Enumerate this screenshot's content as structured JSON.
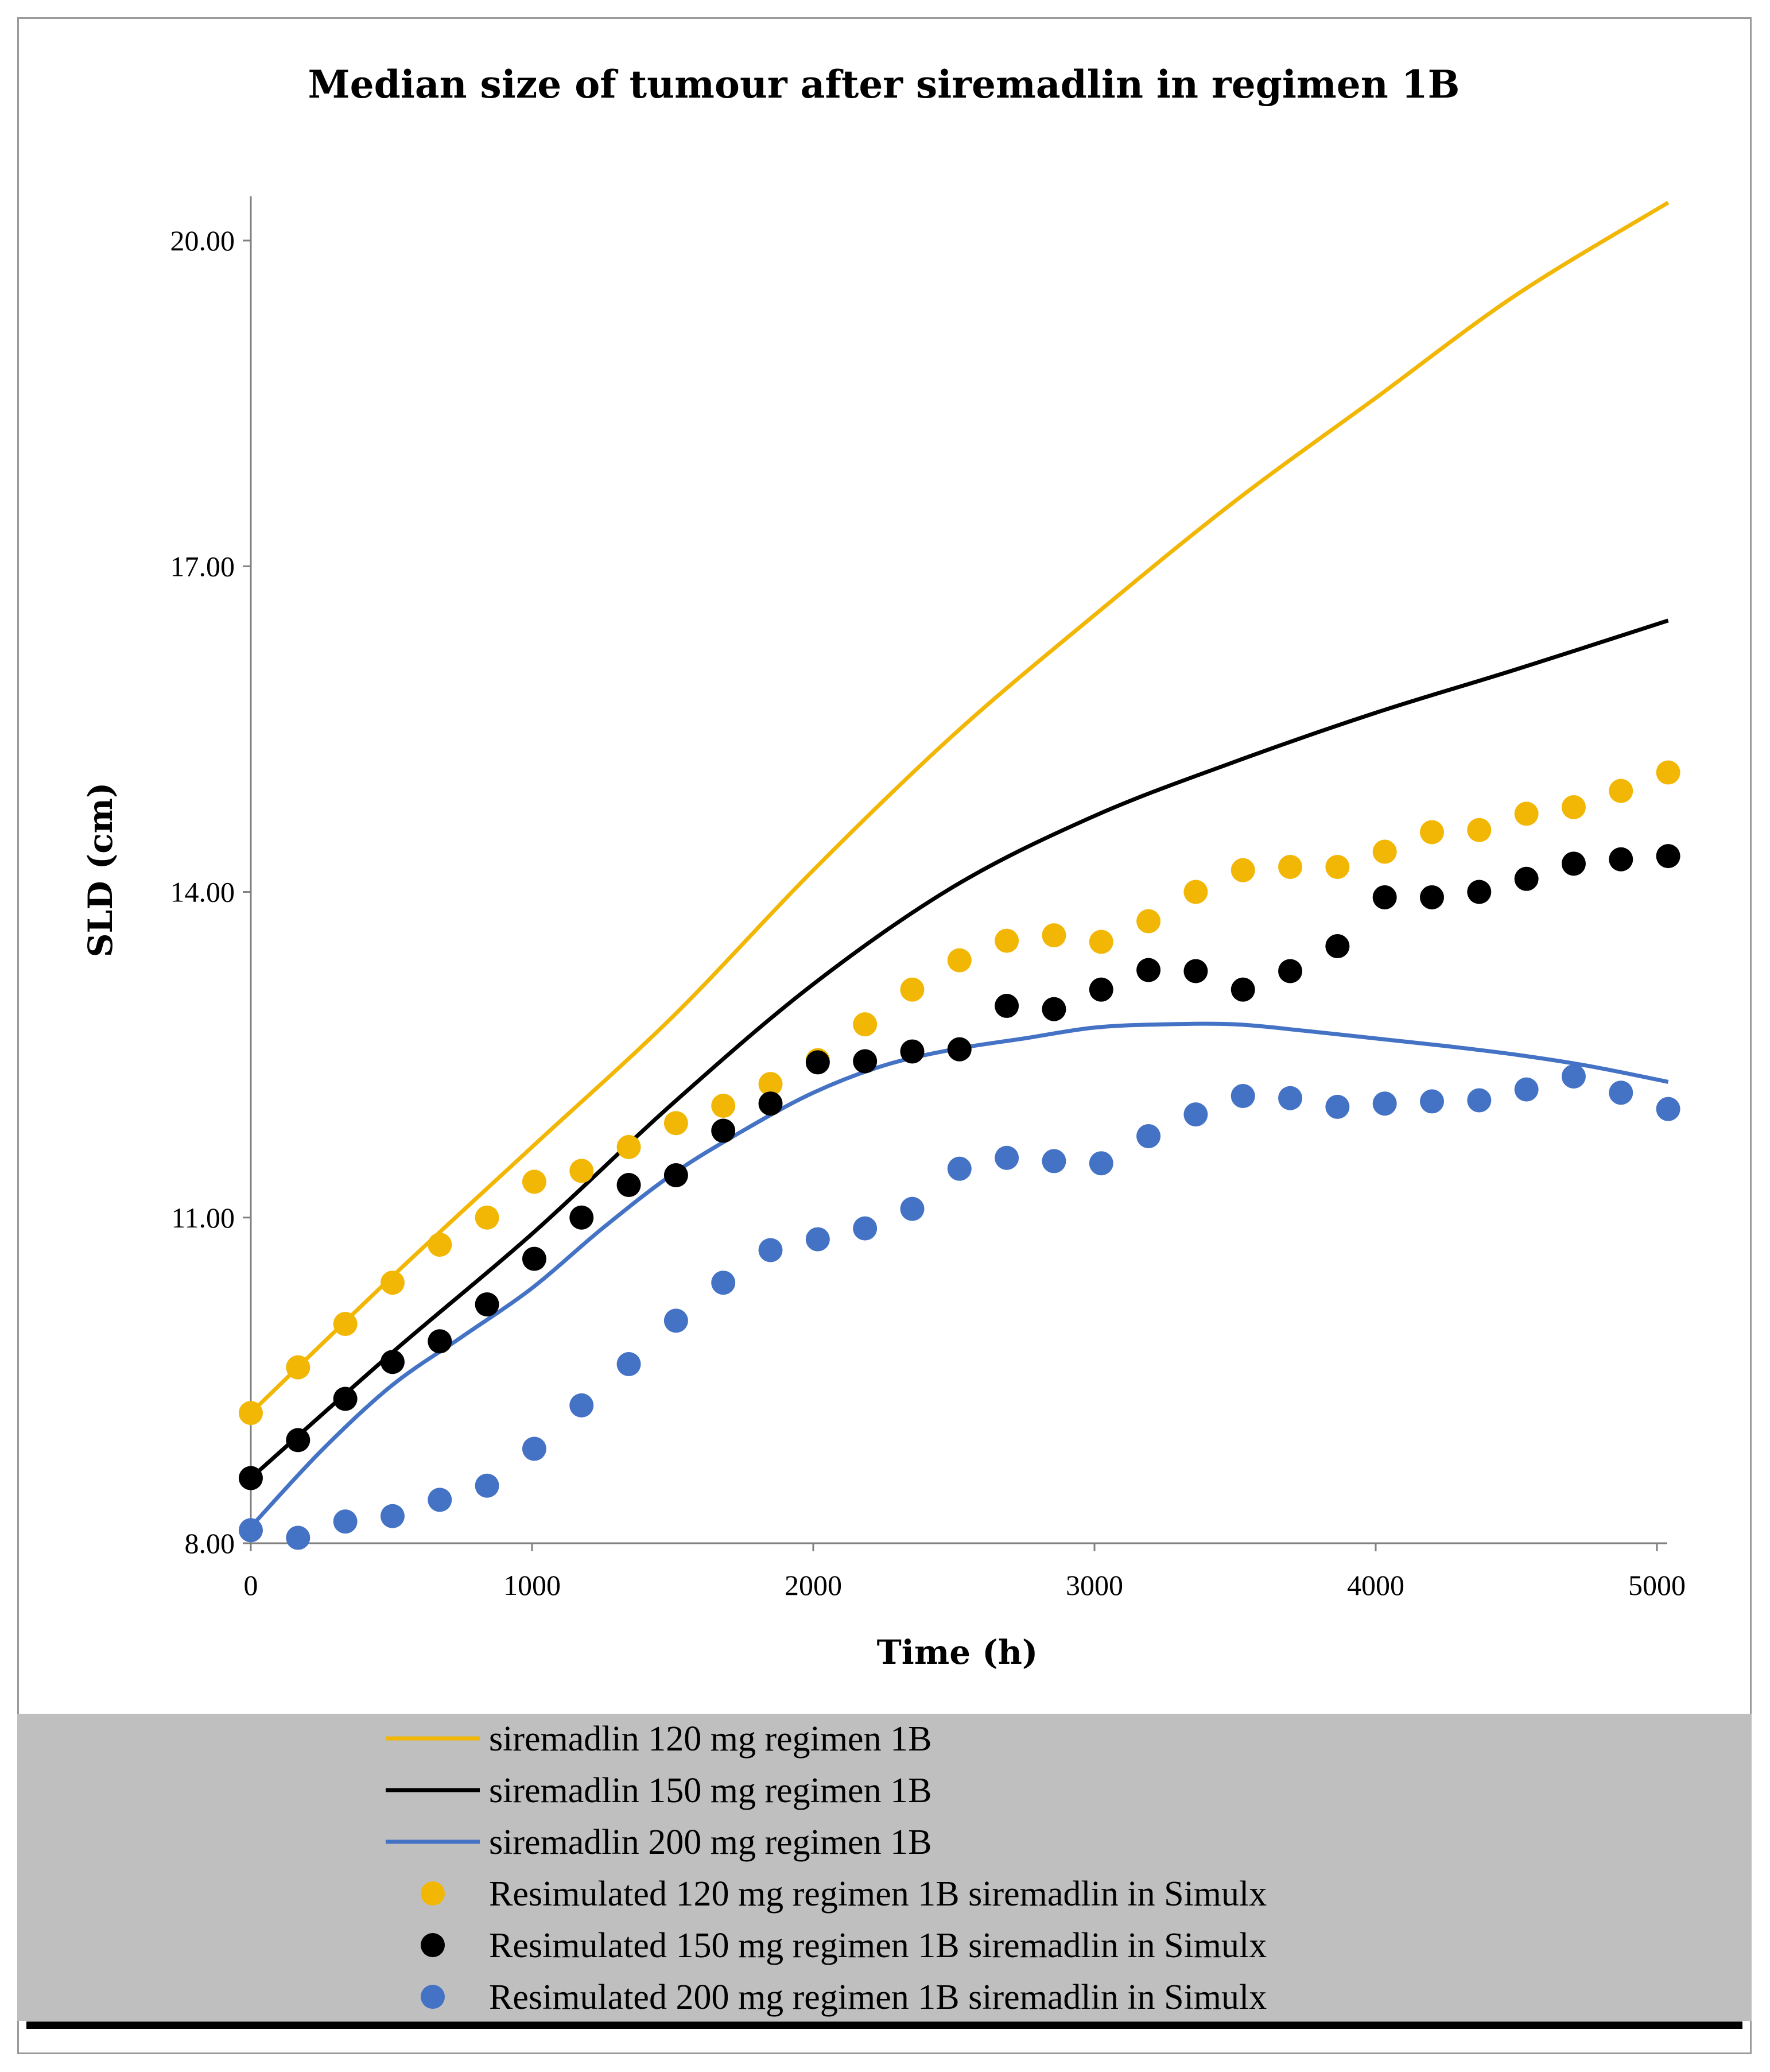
{
  "chart_data": {
    "type": "line",
    "title": "Median size of tumour after siremadlin in regimen 1B",
    "xlabel": "Time (h)",
    "ylabel": "SLD (cm)",
    "xlim": [
      0,
      5050
    ],
    "ylim": [
      8,
      20.4
    ],
    "x_ticks": [
      0,
      1000,
      2000,
      3000,
      4000,
      5000
    ],
    "x_tick_labels": [
      "0",
      "1000",
      "2000",
      "3000",
      "4000",
      "5000"
    ],
    "y_ticks": [
      8,
      11,
      14,
      17,
      20
    ],
    "y_tick_labels": [
      "8.00",
      "11.00",
      "14.00",
      "17.00",
      "20.00"
    ],
    "grid": false,
    "legend_position": "bottom",
    "legend_background": "#bfbfbf",
    "series": [
      {
        "name": "siremadlin 120 mg regimen 1B",
        "kind": "line",
        "color": "#f2b705",
        "x": [
          0,
          500,
          1000,
          1500,
          2000,
          2500,
          3000,
          3500,
          4000,
          4500,
          5040
        ],
        "y": [
          9.2,
          10.45,
          11.65,
          12.85,
          14.2,
          15.45,
          16.55,
          17.6,
          18.55,
          19.5,
          20.35
        ]
      },
      {
        "name": "siremadlin 150 mg regimen 1B",
        "kind": "line",
        "color": "#000000",
        "x": [
          0,
          500,
          1000,
          1500,
          2000,
          2500,
          3000,
          3500,
          4000,
          4500,
          5040
        ],
        "y": [
          8.6,
          9.75,
          10.85,
          12.05,
          13.15,
          14.05,
          14.7,
          15.2,
          15.65,
          16.05,
          16.5
        ]
      },
      {
        "name": "siremadlin 200 mg regimen 1B",
        "kind": "line",
        "color": "#4472c4",
        "x": [
          0,
          250,
          500,
          750,
          1000,
          1250,
          1500,
          1750,
          2000,
          2250,
          2500,
          2750,
          3000,
          3250,
          3500,
          3750,
          4000,
          4250,
          4500,
          4750,
          5040
        ],
        "y": [
          8.15,
          8.85,
          9.45,
          9.9,
          10.35,
          10.9,
          11.4,
          11.8,
          12.15,
          12.4,
          12.55,
          12.65,
          12.75,
          12.78,
          12.78,
          12.72,
          12.65,
          12.58,
          12.5,
          12.4,
          12.25
        ]
      },
      {
        "name": "Resimulated 120 mg regimen 1B siremadlin in Simulx",
        "kind": "scatter",
        "color": "#f2b705",
        "x": [
          0,
          168,
          336,
          504,
          672,
          840,
          1008,
          1176,
          1344,
          1512,
          1680,
          1848,
          2016,
          2184,
          2352,
          2520,
          2688,
          2856,
          3024,
          3192,
          3360,
          3528,
          3696,
          3864,
          4032,
          4200,
          4368,
          4536,
          4704,
          4872,
          5040
        ],
        "y": [
          9.2,
          9.62,
          10.02,
          10.4,
          10.75,
          11.0,
          11.33,
          11.43,
          11.65,
          11.87,
          12.03,
          12.23,
          12.45,
          12.78,
          13.1,
          13.37,
          13.55,
          13.6,
          13.54,
          13.73,
          14.0,
          14.2,
          14.23,
          14.23,
          14.37,
          14.55,
          14.57,
          14.72,
          14.78,
          14.93,
          15.1
        ]
      },
      {
        "name": "Resimulated 150 mg regimen 1B siremadlin in Simulx",
        "kind": "scatter",
        "color": "#000000",
        "x": [
          0,
          168,
          336,
          504,
          672,
          840,
          1008,
          1176,
          1344,
          1512,
          1680,
          1848,
          2016,
          2184,
          2352,
          2520,
          2688,
          2856,
          3024,
          3192,
          3360,
          3528,
          3696,
          3864,
          4032,
          4200,
          4368,
          4536,
          4704,
          4872,
          5040
        ],
        "y": [
          8.6,
          8.95,
          9.33,
          9.67,
          9.86,
          10.2,
          10.62,
          11.0,
          11.3,
          11.39,
          11.8,
          12.05,
          12.43,
          12.44,
          12.53,
          12.55,
          12.95,
          12.92,
          13.1,
          13.28,
          13.27,
          13.1,
          13.27,
          13.5,
          13.95,
          13.95,
          14.0,
          14.12,
          14.26,
          14.3,
          14.33
        ]
      },
      {
        "name": "Resimulated 200 mg regimen 1B siremadlin in Simulx",
        "kind": "scatter",
        "color": "#4472c4",
        "x": [
          0,
          168,
          336,
          504,
          672,
          840,
          1008,
          1176,
          1344,
          1512,
          1680,
          1848,
          2016,
          2184,
          2352,
          2520,
          2688,
          2856,
          3024,
          3192,
          3360,
          3528,
          3696,
          3864,
          4032,
          4200,
          4368,
          4536,
          4704,
          4872,
          5040
        ],
        "y": [
          8.12,
          8.05,
          8.2,
          8.25,
          8.4,
          8.53,
          8.87,
          9.27,
          9.65,
          10.05,
          10.4,
          10.7,
          10.8,
          10.9,
          11.08,
          11.45,
          11.55,
          11.52,
          11.5,
          11.75,
          11.95,
          12.12,
          12.1,
          12.02,
          12.05,
          12.07,
          12.08,
          12.18,
          12.3,
          12.15,
          12.0
        ]
      }
    ]
  }
}
